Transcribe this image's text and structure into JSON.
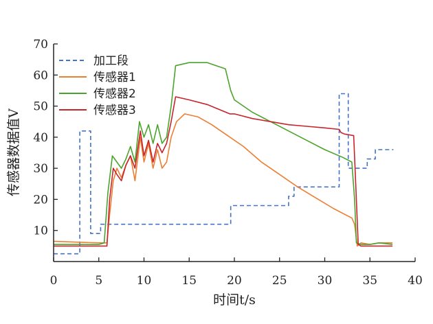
{
  "chart_data": {
    "type": "line",
    "title": "",
    "xlabel": "时间t/s",
    "ylabel": "传感器数据值V",
    "xlim": [
      0,
      40
    ],
    "ylim": [
      0,
      70
    ],
    "xticks": [
      0,
      5,
      10,
      15,
      20,
      25,
      30,
      35,
      40
    ],
    "yticks": [
      10,
      20,
      30,
      40,
      50,
      60,
      70
    ],
    "grid": false,
    "legend_position": "top-left",
    "series": [
      {
        "name": "加工段",
        "color": "#4472c4",
        "style": "dashed",
        "x": [
          0,
          2.9,
          2.9,
          4.1,
          4.1,
          5.2,
          5.2,
          19.6,
          19.6,
          26.0,
          26.0,
          26.6,
          26.6,
          31.6,
          31.6,
          32.6,
          32.6,
          34.7,
          34.7,
          35.6,
          35.6,
          37.6
        ],
        "y": [
          2.5,
          2.5,
          42,
          42,
          9,
          9,
          12,
          12,
          18,
          18,
          21,
          21,
          24,
          24,
          54,
          54,
          30,
          30,
          33,
          33,
          36,
          36
        ]
      },
      {
        "name": "传感器1",
        "color": "#ed7d31",
        "style": "solid",
        "x": [
          0,
          5,
          5.9,
          6.2,
          6.6,
          7.0,
          7.5,
          8.0,
          8.5,
          9.0,
          9.6,
          10.0,
          10.5,
          11.0,
          11.5,
          12.0,
          12.5,
          13.0,
          13.6,
          14.5,
          16,
          17.5,
          19,
          21,
          23,
          25,
          27,
          29,
          31,
          33.0,
          33.3,
          33.6,
          34,
          35,
          36,
          37.5
        ],
        "y": [
          6.5,
          6,
          6,
          15,
          26,
          30,
          27,
          31,
          34,
          26,
          40,
          32,
          38,
          30,
          36,
          30,
          32,
          40,
          45,
          47.5,
          46.5,
          44,
          41,
          37,
          32,
          28,
          24,
          20.5,
          17,
          14,
          12,
          5,
          6,
          5.5,
          6,
          6
        ]
      },
      {
        "name": "传感器2",
        "color": "#4aa32c",
        "style": "solid",
        "x": [
          0,
          5,
          5.6,
          6.0,
          6.5,
          7.0,
          7.5,
          8.0,
          8.5,
          9.0,
          9.5,
          10.0,
          10.5,
          11.0,
          11.5,
          12.0,
          12.5,
          13.0,
          13.5,
          15,
          17,
          19,
          19.6,
          20,
          22,
          24,
          26,
          28,
          30,
          32,
          33.0,
          33.3,
          33.5,
          34,
          35,
          36,
          37.5
        ],
        "y": [
          5.5,
          5.5,
          6,
          22,
          34,
          32,
          30,
          33,
          37,
          32,
          45,
          40,
          44,
          38,
          44,
          38,
          40,
          50,
          63,
          64,
          64,
          62,
          55,
          52,
          48,
          45,
          42,
          39,
          36,
          33.5,
          32,
          20,
          6,
          5.5,
          5.5,
          6,
          5.5
        ]
      },
      {
        "name": "传感器3",
        "color": "#c8232b",
        "style": "solid",
        "x": [
          0,
          5,
          5.9,
          6.2,
          6.6,
          7.0,
          7.5,
          8.0,
          8.5,
          9.0,
          9.6,
          10.0,
          10.5,
          11.0,
          11.5,
          12.0,
          12.5,
          13.0,
          13.5,
          15,
          17,
          19.5,
          20,
          22,
          24,
          26,
          28,
          30,
          31.6,
          31.8,
          32.2,
          33.2,
          33.5,
          33.7,
          34,
          35,
          36,
          37.5
        ],
        "y": [
          5,
          5,
          5,
          20,
          30,
          28,
          26,
          31,
          34,
          30,
          42,
          34,
          39,
          32,
          38,
          35,
          38,
          45,
          53,
          52,
          50.5,
          47.5,
          47.5,
          46,
          45,
          44,
          43.5,
          43,
          42.5,
          41.5,
          41,
          40.5,
          20,
          5.5,
          5,
          5,
          5,
          5
        ]
      }
    ]
  }
}
